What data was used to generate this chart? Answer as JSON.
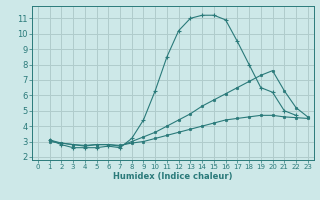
{
  "bg_color": "#cde8e8",
  "grid_color": "#b0cccc",
  "line_color": "#2a7a7a",
  "xlabel": "Humidex (Indice chaleur)",
  "xlim": [
    -0.5,
    23.5
  ],
  "ylim": [
    1.8,
    11.8
  ],
  "yticks": [
    2,
    3,
    4,
    5,
    6,
    7,
    8,
    9,
    10,
    11
  ],
  "xticks": [
    0,
    1,
    2,
    3,
    4,
    5,
    6,
    7,
    8,
    9,
    10,
    11,
    12,
    13,
    14,
    15,
    16,
    17,
    18,
    19,
    20,
    21,
    22,
    23
  ],
  "series1_x": [
    1,
    2,
    3,
    4,
    5,
    6,
    7,
    8,
    9,
    10,
    11,
    12,
    13,
    14,
    15,
    16,
    17,
    18,
    19,
    20,
    21,
    22
  ],
  "series1_y": [
    3.1,
    2.8,
    2.6,
    2.6,
    2.6,
    2.7,
    2.6,
    3.2,
    4.4,
    6.3,
    8.5,
    10.2,
    11.0,
    11.2,
    11.2,
    10.9,
    9.5,
    8.0,
    6.5,
    6.2,
    5.0,
    4.7
  ],
  "series2_x": [
    1,
    2,
    3,
    4,
    5,
    6,
    7,
    8,
    9,
    10,
    11,
    12,
    13,
    14,
    15,
    16,
    17,
    18,
    19,
    20,
    21,
    22,
    23
  ],
  "series2_y": [
    3.1,
    2.9,
    2.8,
    2.7,
    2.8,
    2.8,
    2.7,
    3.0,
    3.3,
    3.6,
    4.0,
    4.4,
    4.8,
    5.3,
    5.7,
    6.1,
    6.5,
    6.9,
    7.3,
    7.6,
    6.3,
    5.2,
    4.6
  ],
  "series3_x": [
    1,
    2,
    3,
    4,
    5,
    6,
    7,
    8,
    9,
    10,
    11,
    12,
    13,
    14,
    15,
    16,
    17,
    18,
    19,
    20,
    21,
    22,
    23
  ],
  "series3_y": [
    3.0,
    2.9,
    2.8,
    2.75,
    2.8,
    2.8,
    2.75,
    2.9,
    3.0,
    3.2,
    3.4,
    3.6,
    3.8,
    4.0,
    4.2,
    4.4,
    4.5,
    4.6,
    4.7,
    4.7,
    4.6,
    4.55,
    4.5
  ],
  "xlabel_fontsize": 6,
  "tick_fontsize_x": 5,
  "tick_fontsize_y": 6
}
